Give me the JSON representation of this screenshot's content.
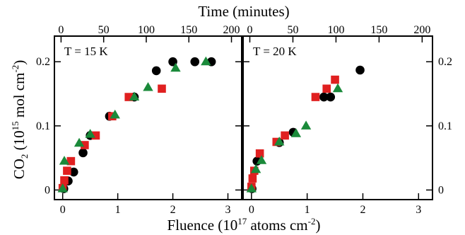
{
  "figure": {
    "top_axis_title": "Time (minutes)",
    "bottom_axis_title_parts": [
      "Fluence (10",
      "17",
      " atoms cm",
      "-2",
      ")"
    ],
    "left_axis_title_parts": [
      "CO",
      "2",
      " (10",
      "15",
      " mol cm",
      "-2",
      ")"
    ]
  },
  "chart_data": [
    {
      "type": "scatter",
      "panel_label": "T = 15 K",
      "xlabel": "Fluence (10^17 atoms cm^-2)",
      "ylabel": "CO2 (10^15 mol cm^-2)",
      "top_xlabel": "Time (minutes)",
      "xlim": [
        -0.15,
        3.25
      ],
      "ylim": [
        -0.015,
        0.24
      ],
      "top_xlim": [
        -7.8,
        212
      ],
      "xticks": [
        0,
        1,
        2,
        3
      ],
      "top_xticks": [
        0,
        50,
        100,
        150,
        200
      ],
      "yticks": [
        0,
        0.1,
        0.2
      ],
      "ytick_labels": [
        "0",
        "0.1",
        "0.2"
      ],
      "legend": "none",
      "grid": false,
      "series": [
        {
          "marker": "circle",
          "color": "#000000",
          "points": [
            [
              0.02,
              0.002
            ],
            [
              0.1,
              0.014
            ],
            [
              0.2,
              0.028
            ],
            [
              0.37,
              0.058
            ],
            [
              0.5,
              0.085
            ],
            [
              0.85,
              0.115
            ],
            [
              1.3,
              0.145
            ],
            [
              1.7,
              0.186
            ],
            [
              2.0,
              0.2
            ],
            [
              2.4,
              0.2
            ],
            [
              2.7,
              0.2
            ]
          ]
        },
        {
          "marker": "square",
          "color": "#e02020",
          "points": [
            [
              0.0,
              0.003
            ],
            [
              0.03,
              0.015
            ],
            [
              0.08,
              0.03
            ],
            [
              0.15,
              0.045
            ],
            [
              0.4,
              0.07
            ],
            [
              0.6,
              0.085
            ],
            [
              0.9,
              0.115
            ],
            [
              1.2,
              0.145
            ],
            [
              1.8,
              0.158
            ]
          ]
        },
        {
          "marker": "triangle",
          "color": "#1a8a3a",
          "points": [
            [
              0.0,
              0.002
            ],
            [
              0.03,
              0.045
            ],
            [
              0.3,
              0.073
            ],
            [
              0.5,
              0.087
            ],
            [
              0.95,
              0.117
            ],
            [
              1.3,
              0.145
            ],
            [
              1.55,
              0.16
            ],
            [
              2.05,
              0.19
            ],
            [
              2.6,
              0.2
            ]
          ]
        }
      ]
    },
    {
      "type": "scatter",
      "panel_label": "T = 20 K",
      "xlabel": "Fluence (10^17 atoms cm^-2)",
      "ylabel": "CO2 (10^15 mol cm^-2)",
      "top_xlabel": "Time (minutes)",
      "xlim": [
        -0.15,
        3.25
      ],
      "ylim": [
        -0.015,
        0.24
      ],
      "top_xlim": [
        -7.8,
        212
      ],
      "xticks": [
        0,
        1,
        2,
        3
      ],
      "top_xticks": [
        0,
        50,
        100,
        150,
        200
      ],
      "yticks": [
        0,
        0.1,
        0.2
      ],
      "ytick_labels": [
        "0",
        "0.1",
        "0.2"
      ],
      "legend": "none",
      "grid": false,
      "series": [
        {
          "marker": "circle",
          "color": "#000000",
          "points": [
            [
              0.01,
              0.002
            ],
            [
              0.1,
              0.045
            ],
            [
              0.5,
              0.074
            ],
            [
              0.75,
              0.09
            ],
            [
              1.3,
              0.145
            ],
            [
              1.42,
              0.145
            ],
            [
              1.95,
              0.187
            ]
          ]
        },
        {
          "marker": "square",
          "color": "#e02020",
          "points": [
            [
              0.0,
              0.005
            ],
            [
              0.02,
              0.018
            ],
            [
              0.05,
              0.03
            ],
            [
              0.15,
              0.057
            ],
            [
              0.45,
              0.075
            ],
            [
              0.6,
              0.085
            ],
            [
              1.15,
              0.145
            ],
            [
              1.35,
              0.158
            ],
            [
              1.5,
              0.172
            ]
          ]
        },
        {
          "marker": "triangle",
          "color": "#1a8a3a",
          "points": [
            [
              0.0,
              0.002
            ],
            [
              0.08,
              0.032
            ],
            [
              0.18,
              0.046
            ],
            [
              0.5,
              0.075
            ],
            [
              0.8,
              0.088
            ],
            [
              0.98,
              0.1
            ],
            [
              1.55,
              0.158
            ]
          ]
        }
      ]
    }
  ]
}
